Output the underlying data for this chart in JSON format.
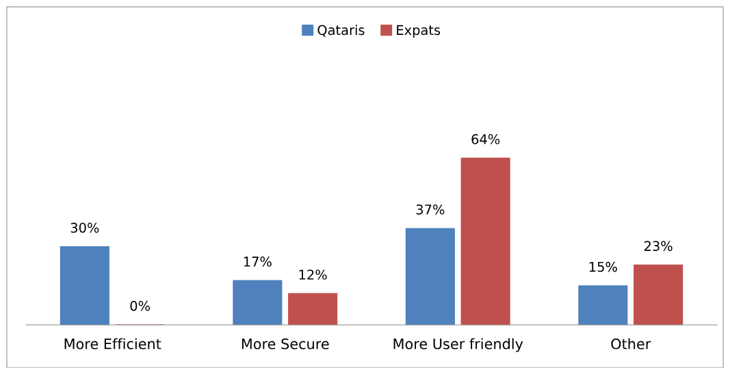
{
  "chart_data": {
    "type": "bar",
    "categories": [
      "More Efficient",
      "More Secure",
      "More User friendly",
      "Other"
    ],
    "series": [
      {
        "name": "Qataris",
        "color": "#4f81bd",
        "values": [
          30,
          17,
          37,
          15
        ],
        "value_labels": [
          "30%",
          "17%",
          "37%",
          "15%"
        ]
      },
      {
        "name": "Expats",
        "color": "#c0504d",
        "values": [
          0,
          12,
          64,
          23
        ],
        "value_labels": [
          "0%",
          "12%",
          "64%",
          "23%"
        ]
      }
    ],
    "legend": "top",
    "grid": false
  }
}
